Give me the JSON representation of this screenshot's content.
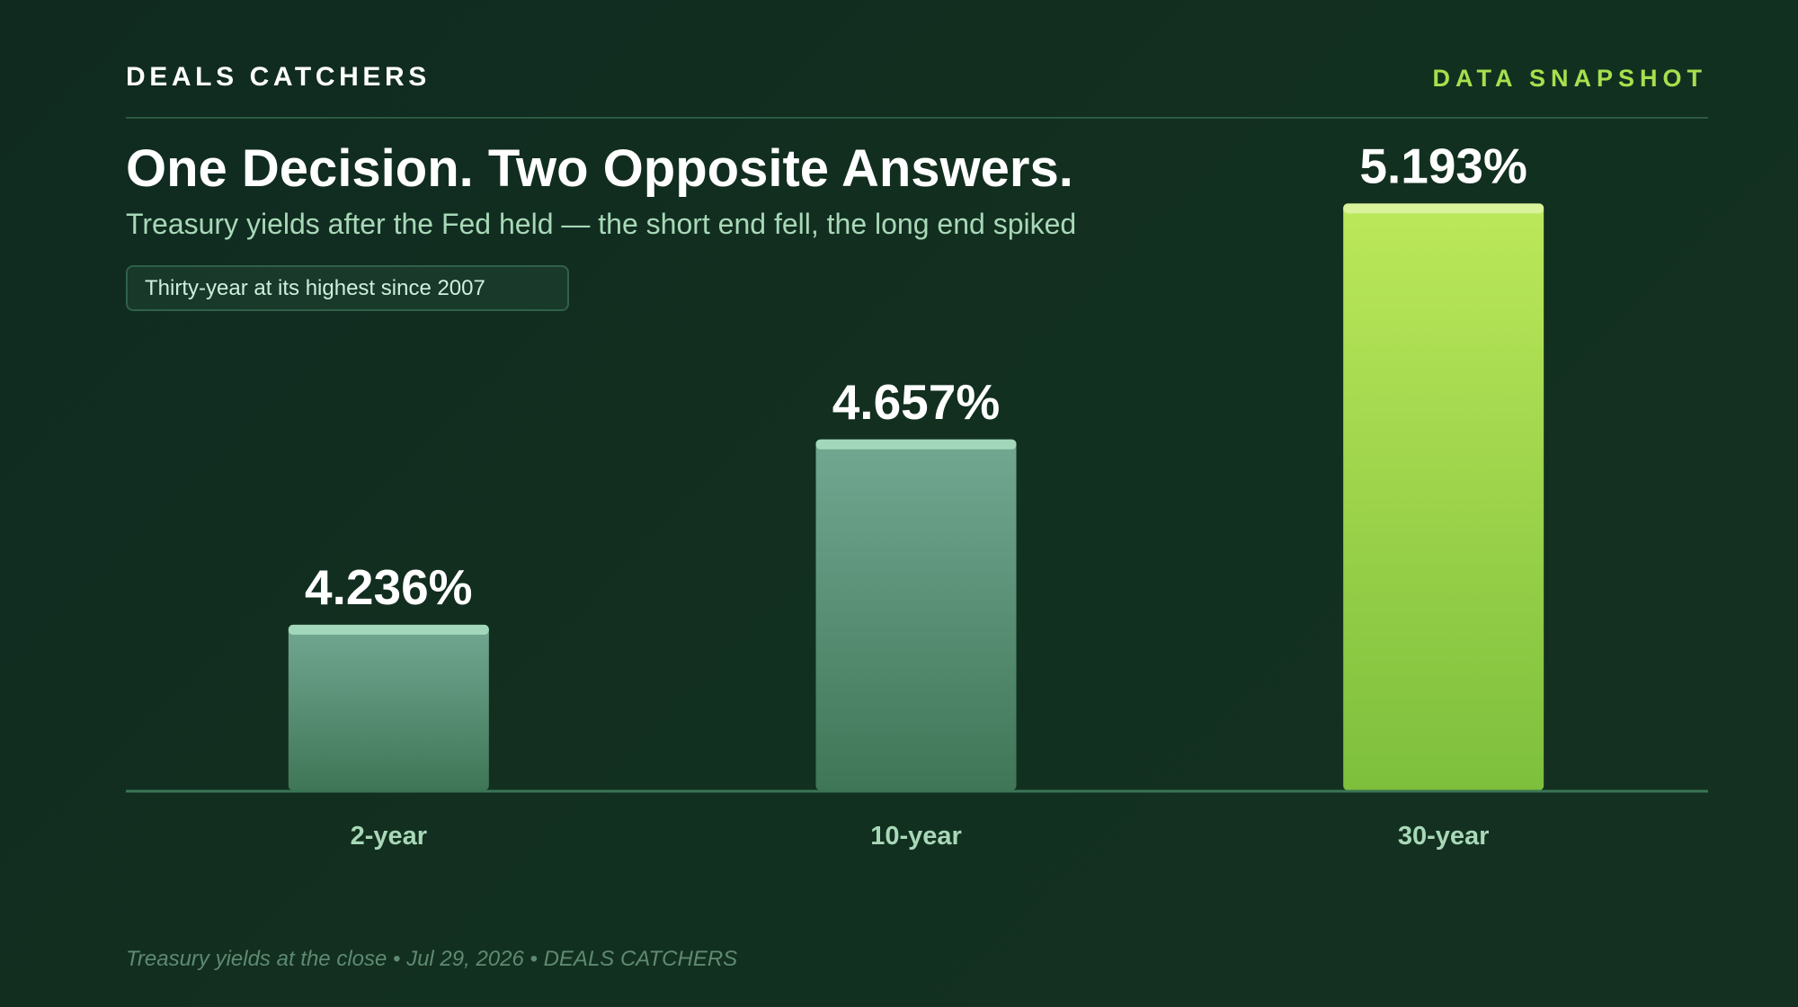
{
  "header": {
    "brand": "DEALS CATCHERS",
    "tag": "DATA SNAPSHOT"
  },
  "headline": "One Decision. Two Opposite Answers.",
  "subtitle": "Treasury yields after the Fed held — the short end fell, the long end spiked",
  "callout": "Thirty-year at its highest since 2007",
  "footer": "Treasury yields at the close • Jul 29, 2026 • DEALS CATCHERS",
  "colors": {
    "background": "#12301f",
    "accent": "#a6e04e",
    "muted_bar": "#5a957c",
    "highlight_bar": "#a6e04e"
  },
  "chart_data": {
    "type": "bar",
    "categories": [
      "2-year",
      "10-year",
      "30-year"
    ],
    "values": [
      4.236,
      4.657,
      5.193
    ],
    "value_labels": [
      "4.236%",
      "4.657%",
      "5.193%"
    ],
    "highlight": [
      "30-year"
    ],
    "title": "",
    "xlabel": "",
    "ylabel": "",
    "grid": false,
    "legend": "none"
  }
}
